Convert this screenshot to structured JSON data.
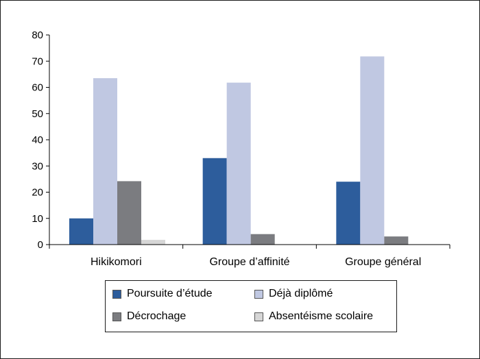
{
  "chart_data": {
    "type": "bar",
    "categories": [
      "Hikikomori",
      "Groupe d’affinité",
      "Groupe général"
    ],
    "series": [
      {
        "name": "Poursuite d’étude",
        "color": "#2d5d9c",
        "values": [
          10,
          33,
          24
        ]
      },
      {
        "name": "Déjà diplômé",
        "color": "#c0c8e2",
        "values": [
          63.5,
          61.8,
          71.8
        ]
      },
      {
        "name": "Décrochage",
        "color": "#7b7c80",
        "values": [
          24.2,
          4,
          3.1
        ]
      },
      {
        "name": "Absentéisme scolaire",
        "color": "#d6d6d6",
        "values": [
          1.8,
          0,
          0
        ]
      }
    ],
    "yticks": [
      0,
      10,
      20,
      30,
      40,
      50,
      60,
      70,
      80
    ],
    "ylim": [
      0,
      80
    ],
    "grid": false,
    "legend_position": "bottom"
  }
}
